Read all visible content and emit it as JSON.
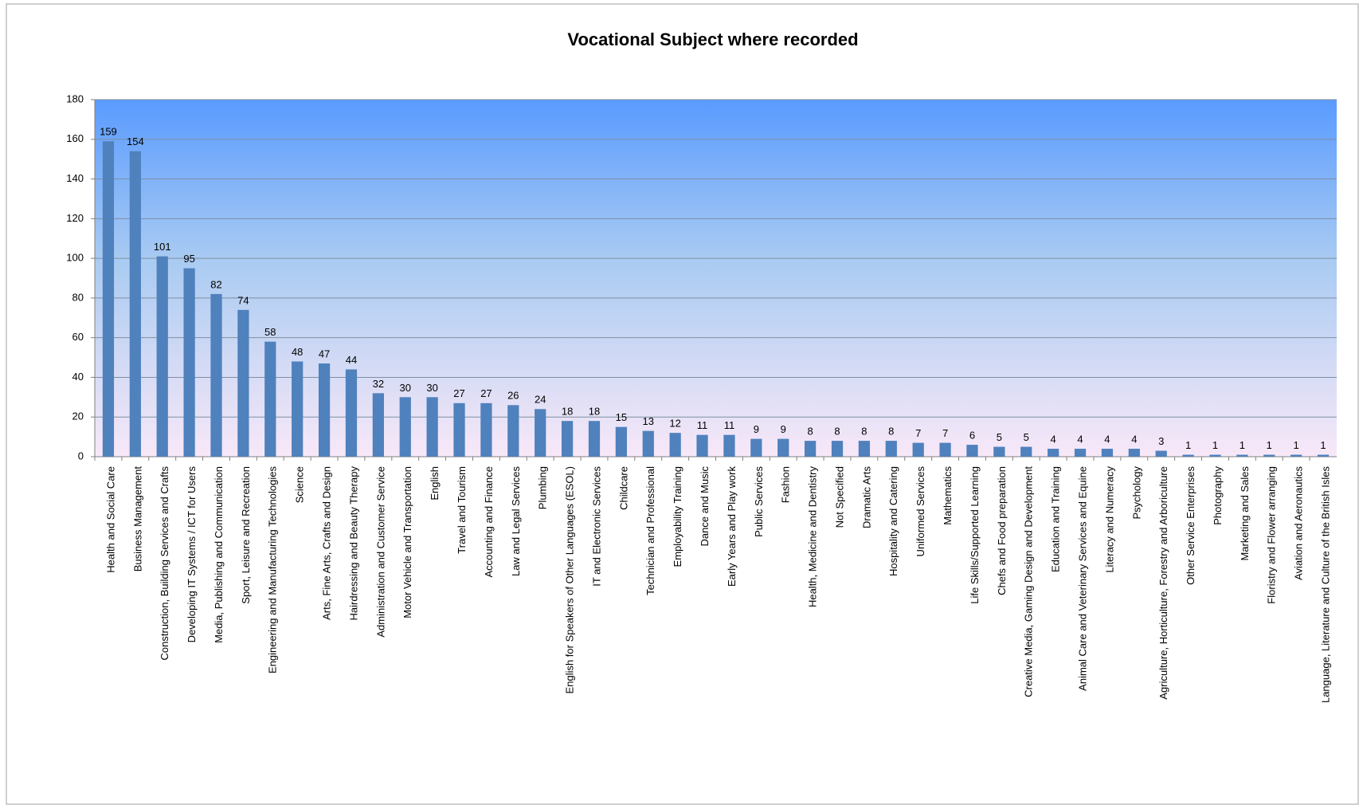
{
  "chart_data": {
    "type": "bar",
    "title": "Vocational Subject where recorded",
    "categories": [
      "Health and Social Care",
      "Business Management",
      "Construction, Building Services and Crafts",
      "Developing IT Systems / ICT for Users",
      "Media, Publishing and Communication",
      "Sport, Leisure and Recreation",
      "Engineering and Manufacturing Technologies",
      "Science",
      "Arts, Fine Arts, Crafts and Design",
      "Hairdressing and Beauty Therapy",
      "Administration and Customer Service",
      "Motor Vehicle and Transportation",
      "English",
      "Travel and Tourism",
      "Accounting and Finance",
      "Law and Legal Services",
      "Plumbing",
      "English for Speakers of Other Languages (ESOL)",
      "IT and Electronic Services",
      "Childcare",
      "Technician and Professional",
      "Employability Training",
      "Dance and Music",
      "Early Years and Play work",
      "Public Services",
      "Fashion",
      "Health, Medicine and Dentistry",
      "Not Specified",
      "Dramatic Arts",
      "Hospitality and Catering",
      "Uniformed Services",
      "Mathematics",
      "Life Skills/Supported Learning",
      "Chefs and Food preparation",
      "Creative Media, Gaming Design and Development",
      "Education and Training",
      "Animal Care and Veterinary Services and Equine",
      "Literacy and Numeracy",
      "Psychology",
      "Agriculture, Horticulture, Forestry and Arboriculture",
      "Other Service Enterprises",
      "Photography",
      "Marketing and Sales",
      "Floristry and Flower arranging",
      "Aviation and Aeronautics",
      "Language, Literature and Culture of the British Isles"
    ],
    "values": [
      159,
      154,
      101,
      95,
      82,
      74,
      58,
      48,
      47,
      44,
      32,
      30,
      30,
      27,
      27,
      26,
      24,
      18,
      18,
      15,
      13,
      12,
      11,
      11,
      9,
      9,
      8,
      8,
      8,
      8,
      7,
      7,
      6,
      5,
      5,
      4,
      4,
      4,
      4,
      3,
      1,
      1,
      1,
      1,
      1,
      1
    ],
    "color": "#4f81bd",
    "ylim": [
      0,
      180
    ],
    "yticks": [
      0,
      20,
      40,
      60,
      80,
      100,
      120,
      140,
      160,
      180
    ],
    "grid": true
  }
}
